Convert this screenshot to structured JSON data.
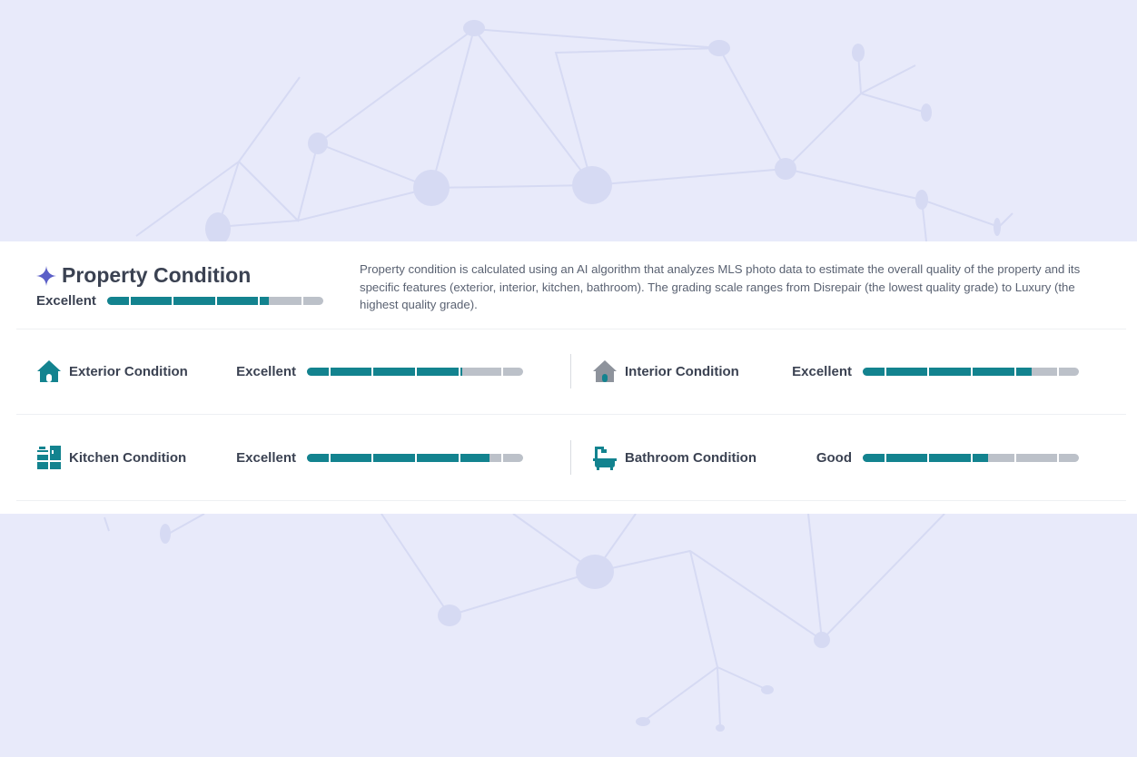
{
  "header": {
    "title": "Property Condition",
    "overall_grade": "Excellent",
    "overall_level": 0.75,
    "description": "Property condition is calculated using an AI algorithm that analyzes MLS photo data to estimate the overall quality of the property and its specific features (exterior, interior, kitchen, bathroom). The grading scale ranges from Disrepair (the lowest quality grade) to Luxury (the highest quality grade)."
  },
  "features": [
    {
      "label": "Exterior Condition",
      "grade": "Excellent",
      "level": 0.72,
      "icon": "house-icon"
    },
    {
      "label": "Interior Condition",
      "grade": "Excellent",
      "level": 0.78,
      "icon": "house-interior-icon"
    },
    {
      "label": "Kitchen Condition",
      "grade": "Excellent",
      "level": 0.845,
      "icon": "kitchen-icon"
    },
    {
      "label": "Bathroom Condition",
      "grade": "Good",
      "level": 0.58,
      "icon": "bathtub-icon"
    }
  ],
  "colors": {
    "accent": "#13838f",
    "track": "#bcc1c9",
    "sparkle": "#5b5fc7",
    "background": "#e8eafa"
  }
}
